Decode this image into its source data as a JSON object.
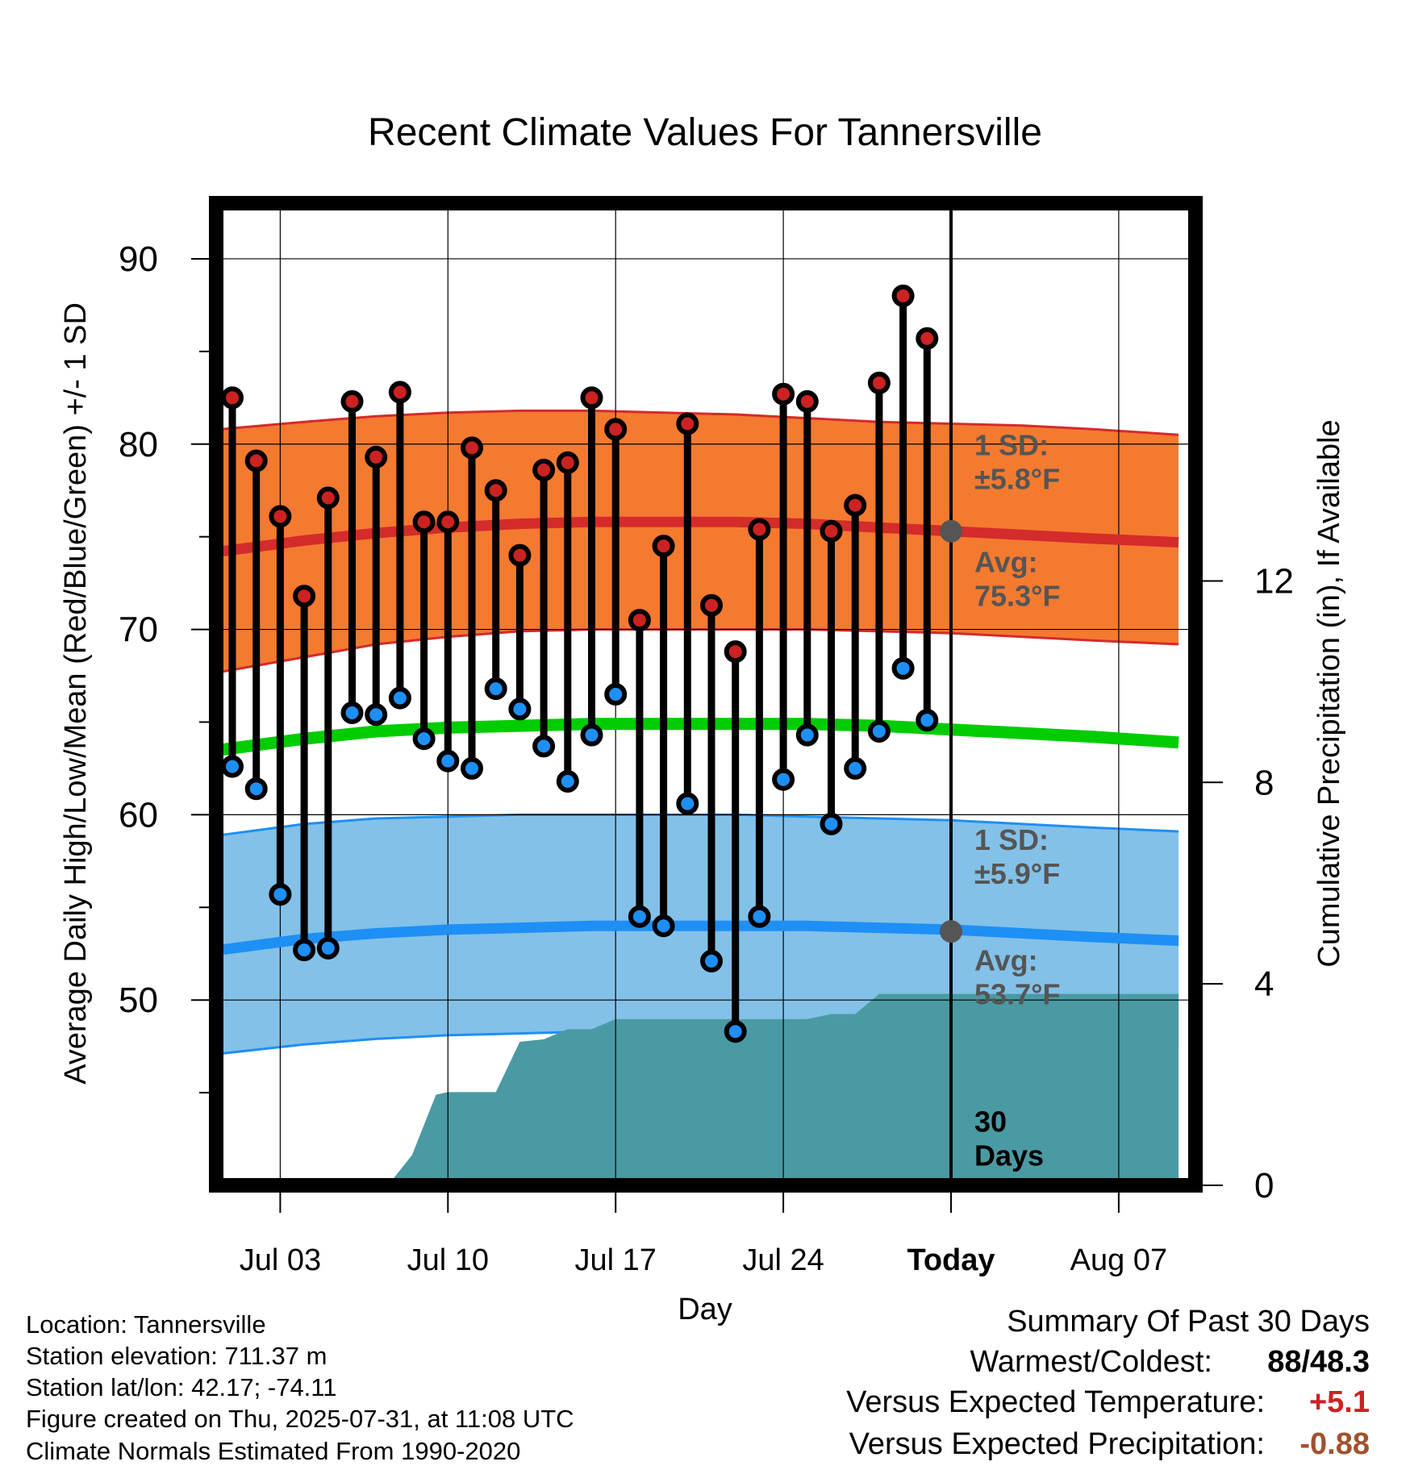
{
  "chart_data": {
    "type": "line",
    "title": "Recent Climate Values For Tannersville",
    "xlabel": "Day",
    "ylabel": "Average Daily High/Low/Mean (Red/Blue/Green) +/- 1 SD",
    "y2label": "Cumulative Precipitation (in), If Available",
    "ylim": [
      40,
      93
    ],
    "y2lim": [
      0,
      19.5
    ],
    "yticks": [
      "50",
      "60",
      "70",
      "80",
      "90"
    ],
    "y2ticks": [
      "0",
      "4",
      "8",
      "12"
    ],
    "xticks": [
      "Jul 03",
      "Jul 10",
      "Jul 17",
      "Jul 24",
      "Today",
      "Aug 07"
    ],
    "grid": true,
    "days": [
      "Jul 01",
      "Jul 02",
      "Jul 03",
      "Jul 04",
      "Jul 05",
      "Jul 06",
      "Jul 07",
      "Jul 08",
      "Jul 09",
      "Jul 10",
      "Jul 11",
      "Jul 12",
      "Jul 13",
      "Jul 14",
      "Jul 15",
      "Jul 16",
      "Jul 17",
      "Jul 18",
      "Jul 19",
      "Jul 20",
      "Jul 21",
      "Jul 22",
      "Jul 23",
      "Jul 24",
      "Jul 25",
      "Jul 26",
      "Jul 27",
      "Jul 28",
      "Jul 29",
      "Jul 30"
    ],
    "daily_high": [
      82.5,
      79.1,
      76.1,
      71.8,
      77.1,
      82.3,
      79.3,
      82.8,
      75.8,
      75.8,
      79.8,
      77.5,
      74.0,
      78.6,
      79.0,
      82.5,
      80.8,
      70.5,
      74.5,
      81.1,
      71.3,
      68.8,
      75.4,
      82.7,
      82.3,
      75.3,
      76.7,
      83.3,
      88.0,
      85.7
    ],
    "daily_low": [
      62.6,
      61.4,
      55.7,
      52.7,
      52.8,
      65.5,
      65.4,
      66.3,
      64.1,
      62.9,
      62.5,
      66.8,
      65.7,
      63.7,
      61.8,
      64.3,
      66.5,
      54.5,
      54.0,
      60.6,
      52.1,
      48.3,
      54.5,
      61.9,
      64.3,
      59.5,
      62.5,
      64.5,
      67.9,
      65.1
    ],
    "normal_day_index": [
      -0.5,
      3.0,
      6.0,
      9.0,
      12.0,
      15.0,
      18.0,
      21.0,
      24.0,
      27.0,
      30.0,
      33.0,
      36.0,
      39.5
    ],
    "normal_high": [
      74.2,
      74.8,
      75.2,
      75.5,
      75.7,
      75.8,
      75.8,
      75.8,
      75.7,
      75.5,
      75.3,
      75.1,
      74.9,
      74.7
    ],
    "normal_high_upper": [
      80.8,
      81.2,
      81.5,
      81.7,
      81.8,
      81.8,
      81.7,
      81.6,
      81.4,
      81.2,
      81.1,
      81.0,
      80.8,
      80.5
    ],
    "normal_high_lower": [
      67.7,
      68.5,
      69.2,
      69.6,
      69.9,
      70.0,
      70.0,
      70.0,
      70.0,
      69.9,
      69.8,
      69.6,
      69.4,
      69.2
    ],
    "normal_mean": [
      63.5,
      64.1,
      64.5,
      64.7,
      64.8,
      64.9,
      64.9,
      64.9,
      64.9,
      64.8,
      64.6,
      64.4,
      64.2,
      63.9
    ],
    "normal_low": [
      52.7,
      53.3,
      53.6,
      53.8,
      53.9,
      54.0,
      54.0,
      54.0,
      54.0,
      53.9,
      53.8,
      53.6,
      53.4,
      53.2
    ],
    "normal_low_upper": [
      58.9,
      59.5,
      59.8,
      59.9,
      60.0,
      60.0,
      60.0,
      60.0,
      59.9,
      59.8,
      59.7,
      59.5,
      59.3,
      59.1
    ],
    "normal_low_lower": [
      47.1,
      47.6,
      47.9,
      48.1,
      48.2,
      48.3,
      48.3,
      48.3,
      48.2,
      48.1,
      48.0,
      47.9,
      47.8,
      47.6
    ],
    "precip_day_index": [
      -0.5,
      6.5,
      7.5,
      8.5,
      9.0,
      10.0,
      11.0,
      12.0,
      13.0,
      14.0,
      15.0,
      16.0,
      24.0,
      25.0,
      26.0,
      27.0,
      39.5
    ],
    "precip_cumulative": [
      0.0,
      0.0,
      0.6,
      1.8,
      1.85,
      1.85,
      1.85,
      2.85,
      2.9,
      3.1,
      3.1,
      3.3,
      3.3,
      3.4,
      3.4,
      3.8,
      3.8
    ],
    "today_index": 30,
    "annotations": {
      "high_sd": [
        "1 SD:",
        "±5.8°F"
      ],
      "high_avg": [
        "Avg:",
        "75.3°F"
      ],
      "low_sd": [
        "1 SD:",
        "±5.9°F"
      ],
      "low_avg": [
        "Avg:",
        "53.7°F"
      ],
      "window": [
        "30",
        "Days"
      ]
    },
    "colors": {
      "high_band": "#f47a30",
      "high_line": "#d42b2b",
      "low_band": "#83c1e8",
      "low_line": "#1e8ff5",
      "mean_line": "#00cc00",
      "precip": "#4a9aa3",
      "high_dot": "#cc2222",
      "low_dot": "#1e8ff5",
      "annotation": "#555555"
    }
  },
  "info": {
    "location": "Location: Tannersville",
    "elevation": "Station elevation: 711.37 m",
    "latlon": "Station lat/lon: 42.17; -74.11",
    "created": "Figure created on Thu, 2025-07-31, at 11:08 UTC",
    "normals": "Climate Normals Estimated From 1990-2020"
  },
  "summary": {
    "title": "Summary Of Past 30 Days",
    "warm_cold_label": "Warmest/Coldest:",
    "warm_cold_value": "88/48.3",
    "temp_label": "Versus Expected Temperature:",
    "temp_value": "+5.1",
    "temp_color": "#cc2222",
    "precip_label": "Versus Expected Precipitation:",
    "precip_value": "-0.88",
    "precip_color": "#a0522d"
  }
}
